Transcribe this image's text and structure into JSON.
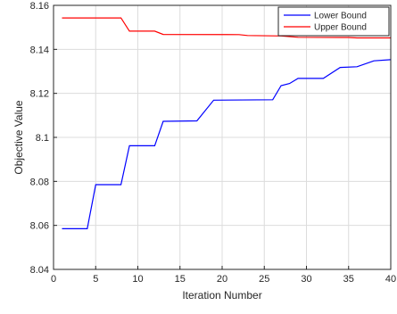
{
  "chart_data": {
    "type": "line",
    "xlabel": "Iteration Number",
    "ylabel": "Objective Value",
    "xlim": [
      0,
      40
    ],
    "ylim": [
      8.04,
      8.16
    ],
    "x_ticks": [
      "0",
      "5",
      "10",
      "15",
      "20",
      "25",
      "30",
      "35",
      "40"
    ],
    "y_ticks": [
      "8.04",
      "8.06",
      "8.08",
      "8.1",
      "8.12",
      "8.14",
      "8.16"
    ],
    "grid": true,
    "legend_position": "top-right",
    "series": [
      {
        "name": "Lower Bound",
        "color": "#0000ff",
        "x": [
          1,
          4,
          5,
          8,
          9,
          12,
          13,
          17,
          19,
          26,
          27,
          28,
          29,
          32,
          34,
          36,
          38,
          40
        ],
        "y": [
          8.0585,
          8.0585,
          8.0785,
          8.0785,
          8.0962,
          8.0962,
          8.1073,
          8.1075,
          8.1169,
          8.1171,
          8.1235,
          8.1245,
          8.1268,
          8.1268,
          8.1318,
          8.1321,
          8.1348,
          8.1353
        ]
      },
      {
        "name": "Upper Bound",
        "color": "#ff0000",
        "x": [
          1,
          8,
          9,
          12,
          13,
          22,
          23,
          27,
          29,
          35,
          36,
          40
        ],
        "y": [
          8.1543,
          8.1543,
          8.1483,
          8.1483,
          8.1468,
          8.1467,
          8.1463,
          8.1461,
          8.1455,
          8.1454,
          8.1452,
          8.1452
        ]
      }
    ]
  }
}
